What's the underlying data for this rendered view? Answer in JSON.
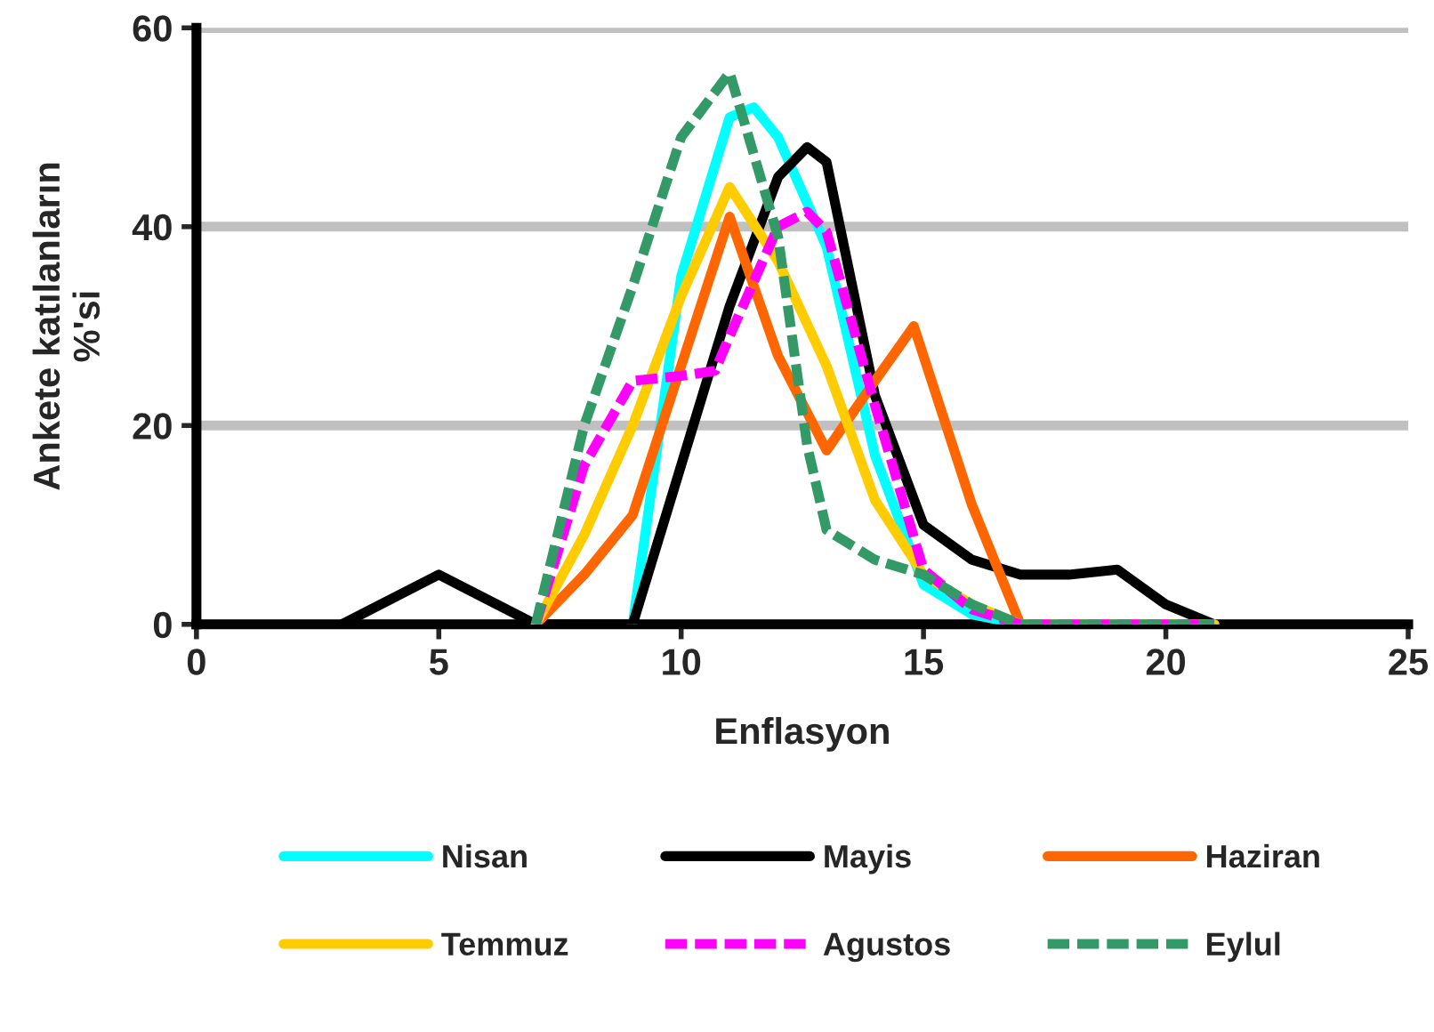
{
  "chart_data": {
    "type": "line",
    "xlabel": "Enflasyon",
    "ylabel": "Ankete katılanların\n%'si",
    "xlim": [
      0,
      25
    ],
    "xticks": [
      0,
      5,
      10,
      15,
      20,
      25
    ],
    "ylim": [
      0,
      60
    ],
    "yticks": [
      0,
      20,
      40,
      60
    ],
    "grid": "y",
    "legend": "bottom",
    "series": [
      {
        "name": "Nisan",
        "color": "#00ffff",
        "line_style": "solid",
        "x": [
          9,
          10,
          11,
          11.5,
          12,
          13,
          14,
          15,
          16,
          17,
          19,
          21
        ],
        "values": [
          0,
          35,
          51,
          52,
          49,
          38,
          17,
          4,
          1,
          0,
          0,
          0
        ]
      },
      {
        "name": "Mayis",
        "color": "#000000",
        "line_style": "solid",
        "x": [
          3,
          5,
          7,
          9,
          10,
          11,
          12,
          12.6,
          13,
          14,
          15,
          16,
          17,
          18,
          19,
          20,
          21
        ],
        "values": [
          0,
          5,
          0,
          0,
          16,
          32,
          45,
          48,
          46.5,
          23,
          10,
          6.5,
          5,
          5,
          5.5,
          2,
          0
        ]
      },
      {
        "name": "Haziran",
        "color": "#ff6600",
        "line_style": "solid",
        "x": [
          7,
          8,
          9,
          10,
          11,
          12,
          13,
          14,
          14.8,
          16,
          17,
          19,
          21
        ],
        "values": [
          0,
          5,
          11,
          26,
          41,
          27,
          17.5,
          24.5,
          30,
          12,
          0,
          0,
          0
        ]
      },
      {
        "name": "Temmuz",
        "color": "#ffcc00",
        "line_style": "solid",
        "x": [
          7,
          8,
          9,
          10,
          11,
          12,
          13,
          14,
          15,
          16,
          17,
          19,
          21
        ],
        "values": [
          0,
          9,
          20,
          33,
          44,
          36.5,
          26,
          12.5,
          5,
          2,
          0,
          0,
          0
        ]
      },
      {
        "name": "Agustos",
        "color": "#ff00ff",
        "line_style": "dashed",
        "x": [
          7,
          8,
          9,
          10,
          10.7,
          11,
          12,
          12.6,
          13,
          14,
          15,
          16,
          17,
          19,
          21
        ],
        "values": [
          0,
          16,
          24.5,
          25,
          25.5,
          29,
          40,
          41.5,
          39.5,
          22,
          5.5,
          1.5,
          0,
          0,
          0
        ]
      },
      {
        "name": "Eylul",
        "color": "#339966",
        "line_style": "dashed",
        "x": [
          7,
          8,
          9,
          10,
          11,
          12,
          12.6,
          13,
          14,
          15,
          16,
          17,
          19,
          21
        ],
        "values": [
          0,
          20,
          34,
          49,
          55.5,
          39,
          18,
          9.5,
          6.5,
          5,
          2,
          0,
          0,
          0
        ]
      }
    ]
  }
}
